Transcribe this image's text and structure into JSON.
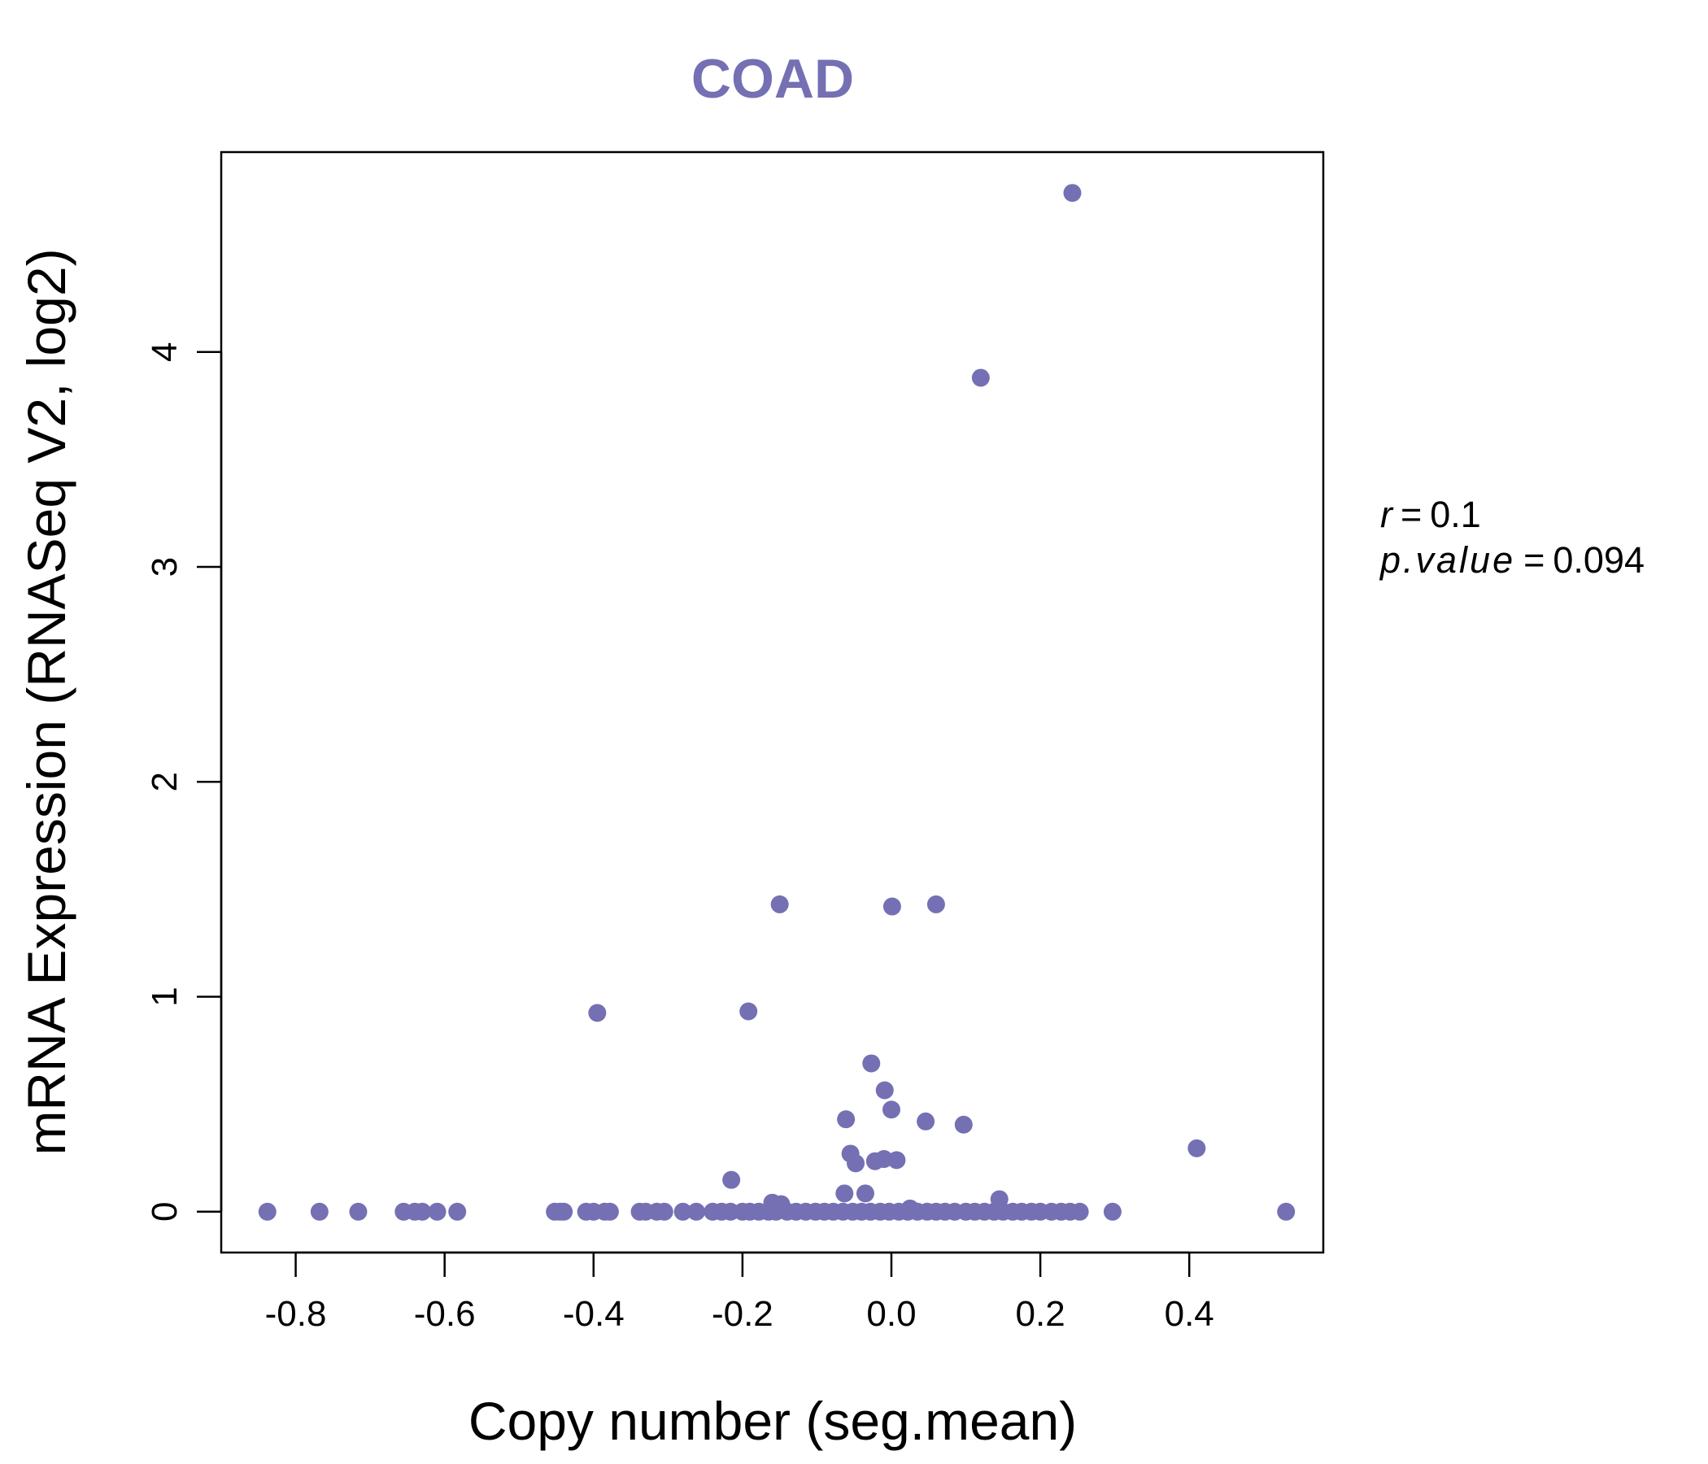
{
  "chart_data": {
    "type": "scatter",
    "title": "COAD",
    "xlabel": "Copy number (seg.mean)",
    "ylabel": "mRNA Expression (RNASeq V2, log2)",
    "xlim": [
      -0.9,
      0.58
    ],
    "ylim": [
      -0.19,
      4.93
    ],
    "x_ticks": [
      -0.8,
      -0.6,
      -0.4,
      -0.2,
      0.0,
      0.2,
      0.4
    ],
    "x_tick_labels": [
      "-0.8",
      "-0.6",
      "-0.4",
      "-0.2",
      "0.0",
      "0.2",
      "0.4"
    ],
    "y_ticks": [
      0,
      1,
      2,
      3,
      4
    ],
    "y_tick_labels": [
      "0",
      "1",
      "2",
      "3",
      "4"
    ],
    "point_color": "#7570b3",
    "stats": {
      "r_label": "r",
      "r_value": "0.1",
      "p_label": "p.value",
      "p_value": "0.094"
    },
    "series": [
      {
        "name": "samples",
        "points": [
          [
            0.243,
            4.74
          ],
          [
            0.12,
            3.88
          ],
          [
            -0.15,
            1.43
          ],
          [
            0.001,
            1.42
          ],
          [
            0.06,
            1.43
          ],
          [
            -0.395,
            0.925
          ],
          [
            -0.192,
            0.932
          ],
          [
            -0.027,
            0.69
          ],
          [
            -0.009,
            0.565
          ],
          [
            0.0,
            0.475
          ],
          [
            -0.061,
            0.43
          ],
          [
            0.046,
            0.42
          ],
          [
            0.097,
            0.405
          ],
          [
            0.41,
            0.295
          ],
          [
            -0.055,
            0.27
          ],
          [
            -0.048,
            0.225
          ],
          [
            -0.022,
            0.235
          ],
          [
            -0.01,
            0.245
          ],
          [
            0.007,
            0.24
          ],
          [
            -0.215,
            0.148
          ],
          [
            -0.063,
            0.085
          ],
          [
            -0.035,
            0.085
          ],
          [
            -0.16,
            0.042
          ],
          [
            -0.148,
            0.035
          ],
          [
            0.145,
            0.058
          ],
          [
            0.025,
            0.015
          ],
          [
            -0.838,
            0.0
          ],
          [
            -0.768,
            0.0
          ],
          [
            -0.716,
            0.0
          ],
          [
            -0.655,
            0.0
          ],
          [
            -0.64,
            0.0
          ],
          [
            -0.63,
            0.0
          ],
          [
            -0.61,
            0.0
          ],
          [
            -0.583,
            0.0
          ],
          [
            -0.452,
            0.0
          ],
          [
            -0.445,
            0.0
          ],
          [
            -0.44,
            0.0
          ],
          [
            -0.41,
            0.0
          ],
          [
            -0.4,
            0.0
          ],
          [
            -0.385,
            0.0
          ],
          [
            -0.378,
            0.0
          ],
          [
            -0.338,
            0.0
          ],
          [
            -0.33,
            0.0
          ],
          [
            -0.315,
            0.0
          ],
          [
            -0.305,
            0.0
          ],
          [
            -0.28,
            0.0
          ],
          [
            -0.262,
            0.0
          ],
          [
            -0.24,
            0.0
          ],
          [
            -0.228,
            0.0
          ],
          [
            -0.216,
            0.0
          ],
          [
            -0.2,
            0.0
          ],
          [
            -0.19,
            0.0
          ],
          [
            -0.178,
            0.0
          ],
          [
            -0.165,
            0.0
          ],
          [
            -0.155,
            0.0
          ],
          [
            -0.14,
            0.0
          ],
          [
            -0.128,
            0.0
          ],
          [
            -0.115,
            0.0
          ],
          [
            -0.102,
            0.0
          ],
          [
            -0.09,
            0.0
          ],
          [
            -0.078,
            0.0
          ],
          [
            -0.065,
            0.0
          ],
          [
            -0.052,
            0.0
          ],
          [
            -0.04,
            0.0
          ],
          [
            -0.028,
            0.0
          ],
          [
            -0.015,
            0.0
          ],
          [
            -0.003,
            0.0
          ],
          [
            0.01,
            0.0
          ],
          [
            0.022,
            0.0
          ],
          [
            0.035,
            0.0
          ],
          [
            0.048,
            0.0
          ],
          [
            0.06,
            0.0
          ],
          [
            0.072,
            0.0
          ],
          [
            0.085,
            0.0
          ],
          [
            0.1,
            0.0
          ],
          [
            0.112,
            0.0
          ],
          [
            0.125,
            0.0
          ],
          [
            0.138,
            0.0
          ],
          [
            0.15,
            0.0
          ],
          [
            0.163,
            0.0
          ],
          [
            0.175,
            0.0
          ],
          [
            0.188,
            0.0
          ],
          [
            0.2,
            0.0
          ],
          [
            0.215,
            0.0
          ],
          [
            0.228,
            0.0
          ],
          [
            0.24,
            0.0
          ],
          [
            0.253,
            0.0
          ],
          [
            0.297,
            0.0
          ],
          [
            0.53,
            0.0
          ]
        ]
      }
    ]
  }
}
